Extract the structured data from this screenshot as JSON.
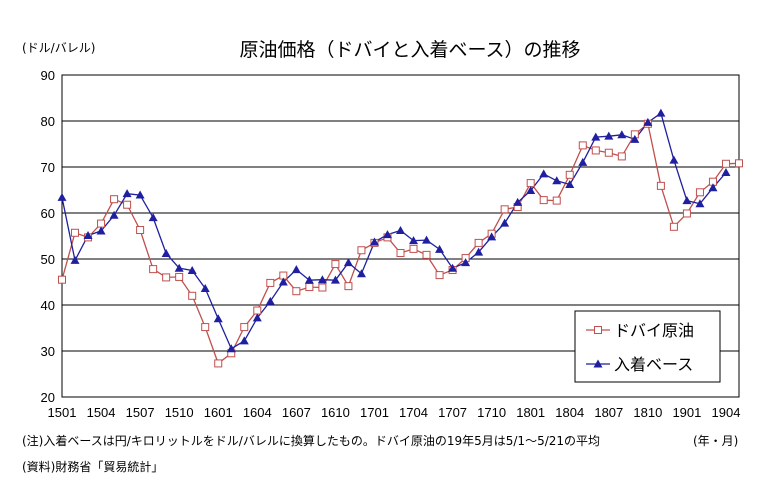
{
  "chart_data": {
    "type": "line",
    "title": "原油価格（ドバイと入着ベース）の推移",
    "ylabel": "(ドル/バレル)",
    "xlabel": "(年・月)",
    "ylim": [
      20,
      90
    ],
    "yticks": [
      20,
      30,
      40,
      50,
      60,
      70,
      80,
      90
    ],
    "grid": "horizontal",
    "legend_position": "bottom-right",
    "x": [
      "1501",
      "1502",
      "1503",
      "1504",
      "1505",
      "1506",
      "1507",
      "1508",
      "1509",
      "1510",
      "1511",
      "1512",
      "1601",
      "1602",
      "1603",
      "1604",
      "1605",
      "1606",
      "1607",
      "1608",
      "1609",
      "1610",
      "1611",
      "1612",
      "1701",
      "1702",
      "1703",
      "1704",
      "1705",
      "1706",
      "1707",
      "1708",
      "1709",
      "1710",
      "1711",
      "1712",
      "1801",
      "1802",
      "1803",
      "1804",
      "1805",
      "1806",
      "1807",
      "1808",
      "1809",
      "1810",
      "1811",
      "1812",
      "1901",
      "1902",
      "1903",
      "1904",
      "1905"
    ],
    "xtick_labels": [
      "1501",
      "1504",
      "1507",
      "1510",
      "1601",
      "1604",
      "1607",
      "1610",
      "1701",
      "1704",
      "1707",
      "1710",
      "1801",
      "1804",
      "1807",
      "1810",
      "1901",
      "1904"
    ],
    "series": [
      {
        "name": "ドバイ原油",
        "color": "#c0504d",
        "marker": "square-open",
        "values": [
          45.5,
          55.7,
          54.7,
          57.7,
          63.0,
          61.8,
          56.3,
          47.8,
          46.0,
          46.1,
          42.0,
          35.2,
          27.3,
          29.5,
          35.2,
          38.8,
          44.8,
          46.4,
          43.0,
          43.9,
          43.8,
          48.9,
          44.1,
          51.9,
          53.5,
          54.7,
          51.3,
          52.2,
          50.9,
          46.5,
          47.6,
          50.2,
          53.5,
          55.5,
          60.8,
          61.3,
          66.5,
          62.8,
          62.7,
          68.3,
          74.7,
          73.6,
          73.1,
          72.3,
          77.1,
          79.4,
          65.9,
          57.0,
          59.9,
          64.5,
          66.8,
          70.7,
          70.8
        ]
      },
      {
        "name": "入着ベース",
        "color": "#1f1fa0",
        "marker": "triangle-filled",
        "values": [
          63.4,
          49.7,
          55.1,
          56.1,
          59.5,
          64.2,
          63.9,
          59.0,
          51.2,
          48.0,
          47.5,
          43.6,
          37.0,
          30.5,
          32.2,
          37.2,
          40.8,
          45.0,
          47.7,
          45.4,
          45.5,
          45.4,
          49.2,
          46.8,
          53.7,
          55.3,
          56.2,
          54.0,
          54.1,
          52.1,
          48.0,
          49.2,
          51.5,
          54.8,
          57.8,
          62.3,
          64.9,
          68.5,
          67.0,
          66.2,
          71.0,
          76.5,
          76.7,
          77.0,
          76.0,
          79.7,
          81.7,
          71.5,
          62.7,
          62.0,
          65.5,
          68.8,
          null
        ]
      }
    ]
  },
  "notes": {
    "footnote": "(注)入着ベースは円/キロリットルをドル/バレルに換算したもの。ドバイ原油の19年5月は5/1～5/21の平均",
    "source": "(資料)財務省「貿易統計」"
  }
}
